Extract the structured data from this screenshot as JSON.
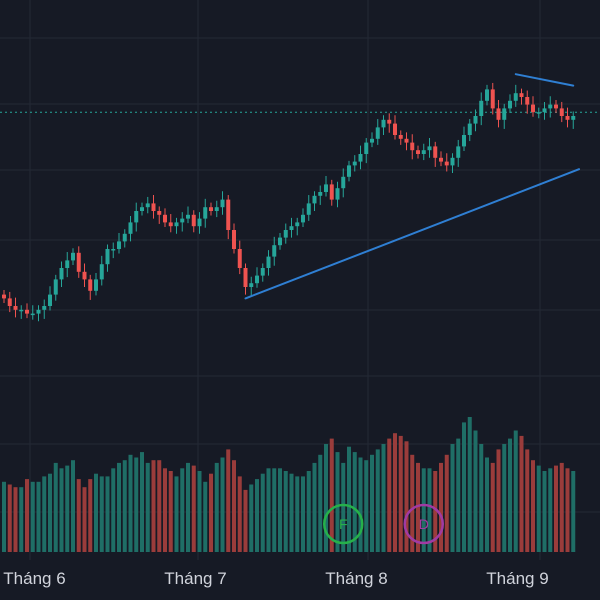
{
  "colors": {
    "background": "#161a25",
    "grid": "#242935",
    "up": "#26a69a",
    "down": "#ef5350",
    "volume_up": "#1f6e66",
    "volume_down": "#9a3c3b",
    "trendline": "#2f7fd3",
    "price_line": "#26a69a",
    "axis_text": "#d1d4dc",
    "marker_f": "#26b04a",
    "marker_d": "#a13aa3"
  },
  "markers": [
    {
      "label": "F",
      "session": 59,
      "color": "#26b04a",
      "icon": "circle-marker"
    },
    {
      "label": "D",
      "session": 73,
      "color": "#a13aa3",
      "icon": "circle-marker"
    }
  ],
  "chart_data": {
    "type": "candlestick",
    "title": "",
    "xlabel": "",
    "ylabel": "",
    "x_ticks": [
      {
        "label": "Tháng 6",
        "session": 2
      },
      {
        "label": "Tháng 7",
        "session": 30
      },
      {
        "label": "Tháng 8",
        "session": 58
      },
      {
        "label": "Tháng 9",
        "session": 86
      }
    ],
    "price_range": [
      0,
      100
    ],
    "reference_price": 81,
    "grid": true,
    "trendlines": [
      {
        "from": {
          "session": 42,
          "price": 32
        },
        "to": {
          "session": 100,
          "price": 66
        }
      },
      {
        "from": {
          "session": 89,
          "price": 91
        },
        "to": {
          "session": 99,
          "price": 88
        }
      }
    ],
    "close": [
      32,
      30,
      29,
      29,
      28,
      28,
      29,
      30,
      33,
      37,
      40,
      42,
      44,
      39,
      37,
      34,
      37,
      41,
      45,
      45,
      47,
      49,
      52,
      55,
      56,
      57,
      55,
      54,
      52,
      51,
      52,
      53,
      54,
      51,
      53,
      56,
      55,
      56,
      58,
      50,
      45,
      40,
      35,
      36,
      38,
      40,
      43,
      46,
      48,
      50,
      51,
      52,
      54,
      57,
      59,
      60,
      62,
      58,
      61,
      64,
      67,
      68,
      70,
      73,
      74,
      77,
      79,
      78,
      75,
      74,
      73,
      71,
      70,
      71,
      72,
      69,
      68,
      67,
      69,
      72,
      75,
      78,
      80,
      84,
      87,
      82,
      79,
      82,
      84,
      86,
      85,
      83,
      81,
      81,
      82,
      83,
      82,
      80,
      79,
      80
    ],
    "volume": [
      26,
      25,
      24,
      24,
      27,
      26,
      26,
      28,
      29,
      33,
      31,
      32,
      34,
      27,
      24,
      27,
      29,
      28,
      28,
      31,
      33,
      34,
      36,
      35,
      37,
      33,
      34,
      34,
      31,
      30,
      28,
      31,
      33,
      32,
      30,
      26,
      29,
      33,
      35,
      38,
      34,
      28,
      23,
      25,
      27,
      29,
      31,
      31,
      31,
      30,
      29,
      28,
      28,
      30,
      33,
      36,
      40,
      42,
      37,
      33,
      39,
      37,
      35,
      34,
      36,
      38,
      40,
      42,
      44,
      43,
      41,
      36,
      33,
      31,
      31,
      30,
      33,
      36,
      40,
      42,
      48,
      50,
      45,
      40,
      35,
      33,
      38,
      40,
      42,
      45,
      43,
      38,
      34,
      32,
      30,
      31,
      32,
      33,
      31,
      30
    ]
  }
}
